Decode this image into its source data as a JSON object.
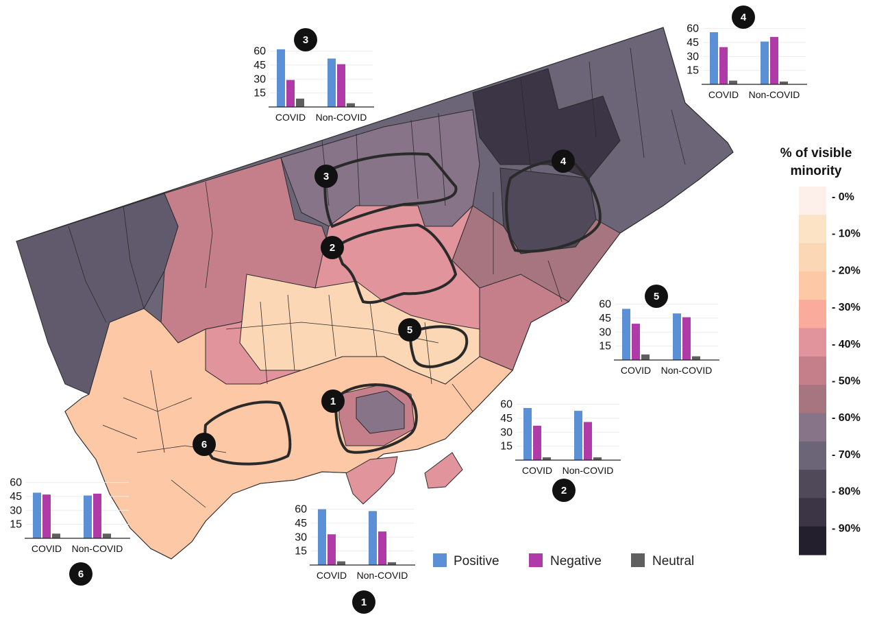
{
  "colors": {
    "positive": "#5b8fd6",
    "negative": "#b03aa8",
    "neutral": "#5f5f5f",
    "outline": "#2a2a2a"
  },
  "legend": {
    "title_line1": "% of visible",
    "title_line2": "minority",
    "labels": [
      "- 0%",
      "- 10%",
      "- 20%",
      "- 30%",
      "- 40%",
      "- 50%",
      "- 60%",
      "- 70%",
      "- 80%",
      "- 90%"
    ],
    "scale_colors": [
      "#fdf0ea",
      "#fde3c6",
      "#fcd7b5",
      "#fcc8a6",
      "#faab9c",
      "#e2949c",
      "#c57f8b",
      "#a77580",
      "#877488",
      "#6c6578",
      "#504959",
      "#3c3545",
      "#231f2c"
    ]
  },
  "key": {
    "positive_label": "Positive",
    "negative_label": "Negative",
    "neutral_label": "Neutral"
  },
  "regions": [
    {
      "id": "1",
      "label": "1"
    },
    {
      "id": "2",
      "label": "2"
    },
    {
      "id": "3",
      "label": "3"
    },
    {
      "id": "4",
      "label": "4"
    },
    {
      "id": "5",
      "label": "5"
    },
    {
      "id": "6",
      "label": "6"
    }
  ],
  "chart_data": [
    {
      "type": "bar",
      "region": "1",
      "categories": [
        "COVID",
        "Non-COVID"
      ],
      "yticks": [
        15,
        30,
        45,
        60
      ],
      "ylim": [
        0,
        70
      ],
      "series": [
        {
          "name": "Positive",
          "values": [
            60,
            58
          ]
        },
        {
          "name": "Negative",
          "values": [
            33,
            36
          ]
        },
        {
          "name": "Neutral",
          "values": [
            4,
            3
          ]
        }
      ]
    },
    {
      "type": "bar",
      "region": "2",
      "categories": [
        "COVID",
        "Non-COVID"
      ],
      "yticks": [
        15,
        30,
        45,
        60
      ],
      "ylim": [
        0,
        70
      ],
      "series": [
        {
          "name": "Positive",
          "values": [
            56,
            53
          ]
        },
        {
          "name": "Negative",
          "values": [
            37,
            41
          ]
        },
        {
          "name": "Neutral",
          "values": [
            3,
            3
          ]
        }
      ]
    },
    {
      "type": "bar",
      "region": "3",
      "categories": [
        "COVID",
        "Non-COVID"
      ],
      "yticks": [
        15,
        30,
        45,
        60
      ],
      "ylim": [
        0,
        70
      ],
      "series": [
        {
          "name": "Positive",
          "values": [
            62,
            52
          ]
        },
        {
          "name": "Negative",
          "values": [
            29,
            46
          ]
        },
        {
          "name": "Neutral",
          "values": [
            9,
            4
          ]
        }
      ]
    },
    {
      "type": "bar",
      "region": "4",
      "categories": [
        "COVID",
        "Non-COVID"
      ],
      "yticks": [
        15,
        30,
        45,
        60
      ],
      "ylim": [
        0,
        70
      ],
      "series": [
        {
          "name": "Positive",
          "values": [
            56,
            46
          ]
        },
        {
          "name": "Negative",
          "values": [
            40,
            51
          ]
        },
        {
          "name": "Neutral",
          "values": [
            4,
            3
          ]
        }
      ]
    },
    {
      "type": "bar",
      "region": "5",
      "categories": [
        "COVID",
        "Non-COVID"
      ],
      "yticks": [
        15,
        30,
        45,
        60
      ],
      "ylim": [
        0,
        70
      ],
      "series": [
        {
          "name": "Positive",
          "values": [
            55,
            50
          ]
        },
        {
          "name": "Negative",
          "values": [
            39,
            46
          ]
        },
        {
          "name": "Neutral",
          "values": [
            6,
            4
          ]
        }
      ]
    },
    {
      "type": "bar",
      "region": "6",
      "categories": [
        "COVID",
        "Non-COVID"
      ],
      "yticks": [
        15,
        30,
        45,
        60
      ],
      "ylim": [
        0,
        70
      ],
      "series": [
        {
          "name": "Positive",
          "values": [
            49,
            46
          ]
        },
        {
          "name": "Negative",
          "values": [
            47,
            48
          ]
        },
        {
          "name": "Neutral",
          "values": [
            5,
            5
          ]
        }
      ]
    }
  ]
}
